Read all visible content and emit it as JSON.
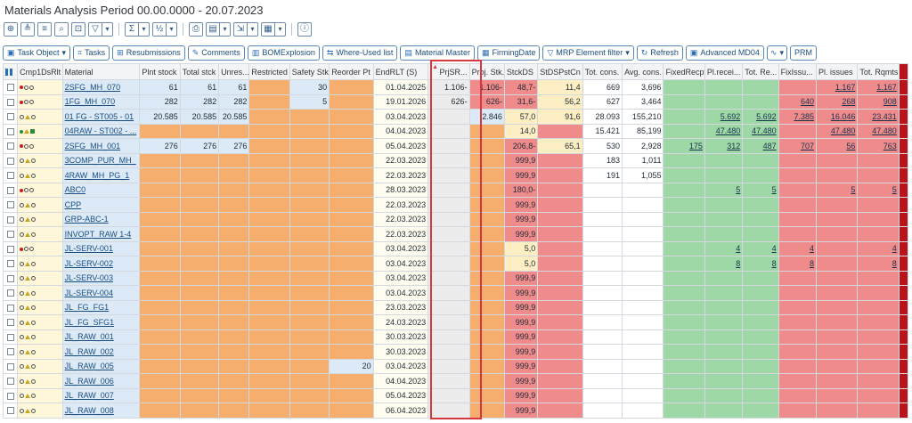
{
  "title": "Materials Analysis Period 00.00.0000 - 20.07.2023",
  "toolbar2": [
    {
      "icon": "task-object-icon",
      "label": "Task Object",
      "dropdown": true
    },
    {
      "icon": "tasks-icon",
      "label": "Tasks"
    },
    {
      "icon": "resubmissions-icon",
      "label": "Resubmissions"
    },
    {
      "icon": "comments-icon",
      "label": "Comments"
    },
    {
      "icon": "bom-icon",
      "label": "BOMExplosion"
    },
    {
      "icon": "where-used-icon",
      "label": "Where-Used list"
    },
    {
      "icon": "material-master-icon",
      "label": "Material Master"
    },
    {
      "icon": "firming-date-icon",
      "label": "FirmingDate"
    },
    {
      "icon": "filter-icon",
      "label": "MRP Element filter",
      "dropdown": true
    },
    {
      "icon": "refresh-icon",
      "label": "Refresh"
    },
    {
      "icon": "md04-icon",
      "label": "Advanced MD04"
    },
    {
      "icon": "wave-icon",
      "label": "",
      "dropdown": true
    },
    {
      "icon": "",
      "label": "PRM"
    }
  ],
  "columns": [
    "",
    "Cmp1DsRlt",
    "Material",
    "Plnt stock",
    "Total stck",
    "Unres...",
    "Restricted",
    "Safety Stk",
    "Reorder Pt",
    "EndRLT (S)",
    "PrjSR...",
    "Proj. Stk.",
    "StckDS",
    "StDSPstCn",
    "Tot. cons.",
    "Avg. cons.",
    "FixedRecpt",
    "Pl.recei...",
    "Tot. Re...",
    "FixIssu...",
    "Pl. issues",
    "Tot. Rqmts"
  ],
  "rows": [
    {
      "ind": "r",
      "material": "2SFG_MH_070",
      "plnt": "61",
      "total": "61",
      "unres": "61",
      "safety": "30",
      "reorder": "",
      "endrlt": "01.04.2025",
      "prjsr": "1.106-",
      "projstk": "1.106-",
      "stckds": "48,7-",
      "stdspstcn": "11,4",
      "totcons": "669",
      "avgcons": "3,696",
      "fixedrecpt": "",
      "plrecei": "",
      "totre": "",
      "fixissu": "",
      "plissues": "1.167",
      "totrqmts": "1.167"
    },
    {
      "ind": "r",
      "material": "1FG_MH_070",
      "plnt": "282",
      "total": "282",
      "unres": "282",
      "safety": "5",
      "reorder": "",
      "endrlt": "19.01.2026",
      "prjsr": "626-",
      "projstk": "626-",
      "stckds": "31,6-",
      "stdspstcn": "56,2",
      "totcons": "627",
      "avgcons": "3,464",
      "fixedrecpt": "",
      "plrecei": "",
      "totre": "",
      "fixissu": "640",
      "plissues": "268",
      "totrqmts": "908"
    },
    {
      "ind": "y",
      "material": "01 FG - ST005 - 01",
      "plnt": "20.585",
      "total": "20.585",
      "unres": "20.585",
      "safety": "",
      "reorder": "",
      "endrlt": "03.04.2023",
      "prjsr": "",
      "projstk": "2.846",
      "stckds": "57,0",
      "stdspstcn": "91,6",
      "totcons": "28.093",
      "avgcons": "155,210",
      "fixedrecpt": "",
      "plrecei": "5.692",
      "totre": "5.692",
      "fixissu": "7.385",
      "plissues": "16.046",
      "totrqmts": "23.431"
    },
    {
      "ind": "g",
      "material": "04RAW - ST002 - ...",
      "plnt": "",
      "total": "",
      "unres": "",
      "safety": "",
      "reorder": "",
      "endrlt": "04.04.2023",
      "prjsr": "",
      "projstk": "",
      "stckds": "14,0",
      "stdspstcn": "",
      "totcons": "15.421",
      "avgcons": "85,199",
      "fixedrecpt": "",
      "plrecei": "47.480",
      "totre": "47.480",
      "fixissu": "",
      "plissues": "47.480",
      "totrqmts": "47.480"
    },
    {
      "ind": "r",
      "material": "2SFG_MH_001",
      "plnt": "276",
      "total": "276",
      "unres": "276",
      "safety": "",
      "reorder": "",
      "endrlt": "05.04.2023",
      "prjsr": "",
      "projstk": "",
      "stckds": "206,8-",
      "stdspstcn": "65,1",
      "totcons": "530",
      "avgcons": "2,928",
      "fixedrecpt": "175",
      "plrecei": "312",
      "totre": "487",
      "fixissu": "707",
      "plissues": "56",
      "totrqmts": "763"
    },
    {
      "ind": "y",
      "material": "3COMP_PUR_MH_",
      "plnt": "",
      "total": "",
      "unres": "",
      "safety": "",
      "reorder": "",
      "endrlt": "22.03.2023",
      "prjsr": "",
      "projstk": "",
      "stckds": "999,9",
      "stdspstcn": "",
      "totcons": "183",
      "avgcons": "1,011",
      "fixedrecpt": "",
      "plrecei": "",
      "totre": "",
      "fixissu": "",
      "plissues": "",
      "totrqmts": ""
    },
    {
      "ind": "y",
      "material": "4RAW_MH_PG_1",
      "plnt": "",
      "total": "",
      "unres": "",
      "safety": "",
      "reorder": "",
      "endrlt": "22.03.2023",
      "prjsr": "",
      "projstk": "",
      "stckds": "999,9",
      "stdspstcn": "",
      "totcons": "191",
      "avgcons": "1,055",
      "fixedrecpt": "",
      "plrecei": "",
      "totre": "",
      "fixissu": "",
      "plissues": "",
      "totrqmts": ""
    },
    {
      "ind": "r",
      "material": "ABC0",
      "plnt": "",
      "total": "",
      "unres": "",
      "safety": "",
      "reorder": "",
      "endrlt": "28.03.2023",
      "prjsr": "",
      "projstk": "",
      "stckds": "180,0-",
      "stdspstcn": "",
      "totcons": "",
      "avgcons": "",
      "fixedrecpt": "",
      "plrecei": "5",
      "totre": "5",
      "fixissu": "",
      "plissues": "5",
      "totrqmts": "5"
    },
    {
      "ind": "y",
      "material": "CPP",
      "plnt": "",
      "total": "",
      "unres": "",
      "safety": "",
      "reorder": "",
      "endrlt": "22.03.2023",
      "prjsr": "",
      "projstk": "",
      "stckds": "999,9",
      "stdspstcn": "",
      "totcons": "",
      "avgcons": "",
      "fixedrecpt": "",
      "plrecei": "",
      "totre": "",
      "fixissu": "",
      "plissues": "",
      "totrqmts": ""
    },
    {
      "ind": "y",
      "material": "GRP-ABC-1",
      "plnt": "",
      "total": "",
      "unres": "",
      "safety": "",
      "reorder": "",
      "endrlt": "22.03.2023",
      "prjsr": "",
      "projstk": "",
      "stckds": "999,9",
      "stdspstcn": "",
      "totcons": "",
      "avgcons": "",
      "fixedrecpt": "",
      "plrecei": "",
      "totre": "",
      "fixissu": "",
      "plissues": "",
      "totrqmts": ""
    },
    {
      "ind": "y",
      "material": "INVOPT_RAW 1-4",
      "plnt": "",
      "total": "",
      "unres": "",
      "safety": "",
      "reorder": "",
      "endrlt": "22.03.2023",
      "prjsr": "",
      "projstk": "",
      "stckds": "999,9",
      "stdspstcn": "",
      "totcons": "",
      "avgcons": "",
      "fixedrecpt": "",
      "plrecei": "",
      "totre": "",
      "fixissu": "",
      "plissues": "",
      "totrqmts": ""
    },
    {
      "ind": "r",
      "material": "JL-SERV-001",
      "plnt": "",
      "total": "",
      "unres": "",
      "safety": "",
      "reorder": "",
      "endrlt": "03.04.2023",
      "prjsr": "",
      "projstk": "",
      "stckds": "5,0",
      "stdspstcn": "",
      "totcons": "",
      "avgcons": "",
      "fixedrecpt": "",
      "plrecei": "4",
      "totre": "4",
      "fixissu": "4",
      "plissues": "",
      "totrqmts": "4"
    },
    {
      "ind": "y",
      "material": "JL-SERV-002",
      "plnt": "",
      "total": "",
      "unres": "",
      "safety": "",
      "reorder": "",
      "endrlt": "03.04.2023",
      "prjsr": "",
      "projstk": "",
      "stckds": "5,0",
      "stdspstcn": "",
      "totcons": "",
      "avgcons": "",
      "fixedrecpt": "",
      "plrecei": "8",
      "totre": "8",
      "fixissu": "8",
      "plissues": "",
      "totrqmts": "8"
    },
    {
      "ind": "y",
      "material": "JL-SERV-003",
      "plnt": "",
      "total": "",
      "unres": "",
      "safety": "",
      "reorder": "",
      "endrlt": "03.04.2023",
      "prjsr": "",
      "projstk": "",
      "stckds": "999,9",
      "stdspstcn": "",
      "totcons": "",
      "avgcons": "",
      "fixedrecpt": "",
      "plrecei": "",
      "totre": "",
      "fixissu": "",
      "plissues": "",
      "totrqmts": ""
    },
    {
      "ind": "y",
      "material": "JL-SERV-004",
      "plnt": "",
      "total": "",
      "unres": "",
      "safety": "",
      "reorder": "",
      "endrlt": "03.04.2023",
      "prjsr": "",
      "projstk": "",
      "stckds": "999,9",
      "stdspstcn": "",
      "totcons": "",
      "avgcons": "",
      "fixedrecpt": "",
      "plrecei": "",
      "totre": "",
      "fixissu": "",
      "plissues": "",
      "totrqmts": ""
    },
    {
      "ind": "y",
      "material": "JL_FG_FG1",
      "plnt": "",
      "total": "",
      "unres": "",
      "safety": "",
      "reorder": "",
      "endrlt": "23.03.2023",
      "prjsr": "",
      "projstk": "",
      "stckds": "999,9",
      "stdspstcn": "",
      "totcons": "",
      "avgcons": "",
      "fixedrecpt": "",
      "plrecei": "",
      "totre": "",
      "fixissu": "",
      "plissues": "",
      "totrqmts": ""
    },
    {
      "ind": "y",
      "material": "JL_FG_SFG1",
      "plnt": "",
      "total": "",
      "unres": "",
      "safety": "",
      "reorder": "",
      "endrlt": "24.03.2023",
      "prjsr": "",
      "projstk": "",
      "stckds": "999,9",
      "stdspstcn": "",
      "totcons": "",
      "avgcons": "",
      "fixedrecpt": "",
      "plrecei": "",
      "totre": "",
      "fixissu": "",
      "plissues": "",
      "totrqmts": ""
    },
    {
      "ind": "y",
      "material": "JL_RAW_001",
      "plnt": "",
      "total": "",
      "unres": "",
      "safety": "",
      "reorder": "",
      "endrlt": "30.03.2023",
      "prjsr": "",
      "projstk": "",
      "stckds": "999,9",
      "stdspstcn": "",
      "totcons": "",
      "avgcons": "",
      "fixedrecpt": "",
      "plrecei": "",
      "totre": "",
      "fixissu": "",
      "plissues": "",
      "totrqmts": ""
    },
    {
      "ind": "y",
      "material": "JL_RAW_002",
      "plnt": "",
      "total": "",
      "unres": "",
      "safety": "",
      "reorder": "",
      "endrlt": "30.03.2023",
      "prjsr": "",
      "projstk": "",
      "stckds": "999,9",
      "stdspstcn": "",
      "totcons": "",
      "avgcons": "",
      "fixedrecpt": "",
      "plrecei": "",
      "totre": "",
      "fixissu": "",
      "plissues": "",
      "totrqmts": ""
    },
    {
      "ind": "y",
      "material": "JL_RAW_005",
      "plnt": "",
      "total": "",
      "unres": "",
      "safety": "",
      "reorder": "20",
      "endrlt": "03.04.2023",
      "prjsr": "",
      "projstk": "",
      "stckds": "999,9",
      "stdspstcn": "",
      "totcons": "",
      "avgcons": "",
      "fixedrecpt": "",
      "plrecei": "",
      "totre": "",
      "fixissu": "",
      "plissues": "",
      "totrqmts": ""
    },
    {
      "ind": "y",
      "material": "JL_RAW_006",
      "plnt": "",
      "total": "",
      "unres": "",
      "safety": "",
      "reorder": "",
      "endrlt": "04.04.2023",
      "prjsr": "",
      "projstk": "",
      "stckds": "999,9",
      "stdspstcn": "",
      "totcons": "",
      "avgcons": "",
      "fixedrecpt": "",
      "plrecei": "",
      "totre": "",
      "fixissu": "",
      "plissues": "",
      "totrqmts": ""
    },
    {
      "ind": "y",
      "material": "JL_RAW_007",
      "plnt": "",
      "total": "",
      "unres": "",
      "safety": "",
      "reorder": "",
      "endrlt": "05.04.2023",
      "prjsr": "",
      "projstk": "",
      "stckds": "999,9",
      "stdspstcn": "",
      "totcons": "",
      "avgcons": "",
      "fixedrecpt": "",
      "plrecei": "",
      "totre": "",
      "fixissu": "",
      "plissues": "",
      "totrqmts": ""
    },
    {
      "ind": "y",
      "material": "JL_RAW_008",
      "plnt": "",
      "total": "",
      "unres": "",
      "safety": "",
      "reorder": "",
      "endrlt": "06.04.2023",
      "prjsr": "",
      "projstk": "",
      "stckds": "999,9",
      "stdspstcn": "",
      "totcons": "",
      "avgcons": "",
      "fixedrecpt": "",
      "plrecei": "",
      "totre": "",
      "fixissu": "",
      "plissues": "",
      "totrqmts": ""
    }
  ],
  "colors": {
    "blue_cell": "#dceaf7",
    "orange_cell": "#f6ae6e",
    "red_cell": "#f08b8b",
    "green_cell": "#9ed8a6",
    "highlight_box": "#d9363e"
  }
}
